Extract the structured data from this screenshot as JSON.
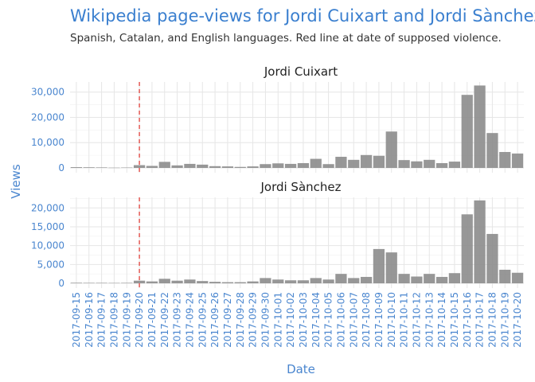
{
  "title": "Wikipedia page-views for Jordi Cuixart and Jordi Sànchez",
  "subtitle": "Spanish, Catalan, and English languages. Red line at date of supposed violence.",
  "colors": {
    "bar": "#8c8c8c",
    "vline": "#e0403a",
    "accent": "#3a7fcf"
  },
  "chart_data": {
    "type": "bar",
    "xlabel": "Date",
    "ylabel": "Views",
    "vline_date": "2017-09-20",
    "categories": [
      "2017-09-15",
      "2017-09-16",
      "2017-09-17",
      "2017-09-18",
      "2017-09-19",
      "2017-09-20",
      "2017-09-21",
      "2017-09-22",
      "2017-09-23",
      "2017-09-24",
      "2017-09-25",
      "2017-09-26",
      "2017-09-27",
      "2017-09-28",
      "2017-09-29",
      "2017-09-30",
      "2017-10-01",
      "2017-10-02",
      "2017-10-03",
      "2017-10-04",
      "2017-10-05",
      "2017-10-06",
      "2017-10-07",
      "2017-10-08",
      "2017-10-09",
      "2017-10-10",
      "2017-10-11",
      "2017-10-12",
      "2017-10-13",
      "2017-10-14",
      "2017-10-15",
      "2017-10-16",
      "2017-10-17",
      "2017-10-18",
      "2017-10-19",
      "2017-10-20"
    ],
    "x_tick_labels": [
      "2017-09-15",
      "2017-09-16",
      "2017-09-17",
      "2017-09-18",
      "2017-09-19",
      "2017-09-20",
      "2017-09-21",
      "2017-09-22",
      "2017-09-23",
      "2017-09-24",
      "2017-09-25",
      "2017-09-26",
      "2017-09-27",
      "2017-09-28",
      "2017-09-29",
      "2017-09-30",
      "2017-10-01",
      "2017-10-02",
      "2017-10-03",
      "2017-10-04",
      "2017-10-05",
      "2017-10-06",
      "2017-10-07",
      "2017-10-08",
      "2017-10-09",
      "2017-10-10",
      "2017-10-11",
      "2017-10-12",
      "2017-10-13",
      "2017-10-14",
      "2017-10-15",
      "2017-10-16",
      "2017-10-17",
      "2017-10-18",
      "2017-10-19",
      "2017-10-20"
    ],
    "panels": [
      {
        "name": "Jordi Cuixart",
        "ylim": [
          0,
          34000
        ],
        "yticks": [
          0,
          10000,
          20000,
          30000
        ],
        "ytick_labels": [
          "0",
          "10,000",
          "20,000",
          "30,000"
        ],
        "values": [
          300,
          250,
          200,
          100,
          150,
          1100,
          800,
          2400,
          1000,
          1600,
          1300,
          700,
          600,
          400,
          600,
          1500,
          1800,
          1600,
          1900,
          3600,
          1500,
          4400,
          3200,
          5100,
          4800,
          14400,
          3100,
          2600,
          3200,
          1900,
          2500,
          28900,
          32600,
          13800,
          6300,
          5700
        ]
      },
      {
        "name": "Jordi Sànchez",
        "ylim": [
          0,
          22800
        ],
        "yticks": [
          0,
          5000,
          10000,
          15000,
          20000
        ],
        "ytick_labels": [
          "0",
          "5,000",
          "10,000",
          "15,000",
          "20,000"
        ],
        "values": [
          150,
          120,
          120,
          100,
          120,
          700,
          500,
          1200,
          700,
          1000,
          600,
          400,
          300,
          300,
          500,
          1400,
          1000,
          800,
          800,
          1400,
          1000,
          2500,
          1400,
          1700,
          9100,
          8200,
          2500,
          1800,
          2500,
          1700,
          2700,
          18300,
          22000,
          13100,
          3600,
          2800
        ]
      }
    ]
  }
}
